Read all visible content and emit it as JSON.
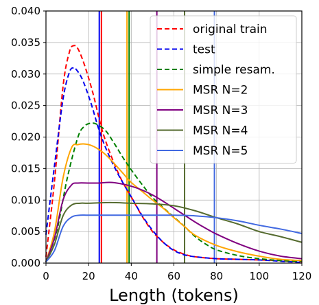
{
  "chart_data": {
    "type": "line",
    "xlabel": "Length (tokens)",
    "ylabel": "",
    "xlim": [
      0,
      120
    ],
    "ylim": [
      0,
      0.04
    ],
    "x_ticks": [
      0,
      20,
      40,
      60,
      80,
      100,
      120
    ],
    "y_ticks": [
      0.0,
      0.005,
      0.01,
      0.015,
      0.02,
      0.025,
      0.03,
      0.035,
      0.04
    ],
    "x_tick_labels": [
      "0",
      "20",
      "40",
      "60",
      "80",
      "100",
      "120"
    ],
    "y_tick_labels": [
      "0.000",
      "0.005",
      "0.010",
      "0.015",
      "0.020",
      "0.025",
      "0.030",
      "0.035",
      "0.040"
    ],
    "grid": true,
    "legend_position": "top-right",
    "series": [
      {
        "name": "original train",
        "color": "#ff0000",
        "dash": "dashed",
        "mean": 26,
        "x": [
          0,
          4,
          8,
          11,
          13,
          15,
          18,
          22,
          26,
          30,
          35,
          40,
          45,
          50,
          55,
          60,
          65,
          70,
          80,
          90,
          100,
          110,
          120
        ],
        "y": [
          0.001,
          0.013,
          0.028,
          0.0335,
          0.0345,
          0.034,
          0.0315,
          0.027,
          0.0215,
          0.0175,
          0.0135,
          0.0105,
          0.0075,
          0.005,
          0.0033,
          0.0021,
          0.0014,
          0.001,
          0.0007,
          0.0006,
          0.0005,
          0.0004,
          0.0002
        ]
      },
      {
        "name": "test",
        "color": "#0000ee",
        "dash": "dashed",
        "mean": 25,
        "x": [
          0,
          4,
          8,
          11,
          13,
          14,
          17,
          21,
          25,
          29,
          34,
          40,
          45,
          50,
          55,
          60,
          65,
          70,
          80,
          90,
          100,
          110,
          120
        ],
        "y": [
          0.0045,
          0.0155,
          0.026,
          0.0303,
          0.031,
          0.0308,
          0.0292,
          0.0255,
          0.021,
          0.0175,
          0.014,
          0.0105,
          0.0076,
          0.0052,
          0.0033,
          0.002,
          0.0013,
          0.001,
          0.0007,
          0.0006,
          0.0005,
          0.0003,
          0.0001
        ]
      },
      {
        "name": "simple resam.",
        "color": "#008000",
        "dash": "dashed",
        "mean": 39,
        "x": [
          0,
          5,
          10,
          15,
          18,
          21,
          24,
          28,
          32,
          36,
          40,
          45,
          50,
          55,
          60,
          65,
          70,
          75,
          80,
          90,
          100,
          110,
          120
        ],
        "y": [
          0.0002,
          0.005,
          0.0135,
          0.02,
          0.0217,
          0.0222,
          0.022,
          0.021,
          0.019,
          0.0168,
          0.0148,
          0.0125,
          0.0104,
          0.0088,
          0.0073,
          0.0058,
          0.0042,
          0.003,
          0.0021,
          0.0012,
          0.0007,
          0.0004,
          0.0003
        ]
      },
      {
        "name": "MSR N=2",
        "color": "#ffa500",
        "dash": "solid",
        "mean": 38,
        "x": [
          0,
          4,
          8,
          12,
          15,
          18,
          21,
          24,
          28,
          32,
          36,
          40,
          45,
          50,
          55,
          60,
          65,
          70,
          80,
          90,
          100,
          110,
          120
        ],
        "y": [
          0.0002,
          0.005,
          0.0135,
          0.0183,
          0.0188,
          0.0189,
          0.0187,
          0.0182,
          0.0172,
          0.0158,
          0.0143,
          0.0128,
          0.0114,
          0.01,
          0.0087,
          0.0072,
          0.0058,
          0.0044,
          0.0028,
          0.0018,
          0.0011,
          0.0006,
          0.0004
        ]
      },
      {
        "name": "MSR N=3",
        "color": "#800080",
        "dash": "solid",
        "mean": 52,
        "x": [
          0,
          4,
          8,
          12,
          15,
          20,
          25,
          30,
          35,
          40,
          45,
          50,
          55,
          60,
          65,
          70,
          75,
          80,
          90,
          100,
          110,
          120
        ],
        "y": [
          0.0002,
          0.004,
          0.01,
          0.0124,
          0.0127,
          0.0127,
          0.0127,
          0.0128,
          0.0126,
          0.0122,
          0.0116,
          0.0108,
          0.0098,
          0.0087,
          0.0076,
          0.0065,
          0.0055,
          0.0046,
          0.0031,
          0.0019,
          0.0011,
          0.0007
        ]
      },
      {
        "name": "MSR N=4",
        "color": "#556b2f",
        "dash": "solid",
        "mean": 65,
        "x": [
          0,
          4,
          8,
          12,
          16,
          20,
          30,
          40,
          50,
          60,
          70,
          80,
          90,
          100,
          110,
          120
        ],
        "y": [
          0.0002,
          0.003,
          0.0075,
          0.0092,
          0.0095,
          0.0095,
          0.0096,
          0.0095,
          0.0094,
          0.0091,
          0.0083,
          0.0072,
          0.0062,
          0.005,
          0.0042,
          0.0033
        ]
      },
      {
        "name": "MSR N=5",
        "color": "#4169e1",
        "dash": "solid",
        "mean": 79,
        "x": [
          0,
          4,
          8,
          12,
          16,
          20,
          30,
          40,
          50,
          60,
          70,
          80,
          90,
          100,
          110,
          120
        ],
        "y": [
          0.0002,
          0.002,
          0.0058,
          0.0073,
          0.0076,
          0.0076,
          0.0076,
          0.0076,
          0.0076,
          0.0076,
          0.0075,
          0.0072,
          0.0067,
          0.006,
          0.0054,
          0.0047
        ]
      }
    ]
  }
}
